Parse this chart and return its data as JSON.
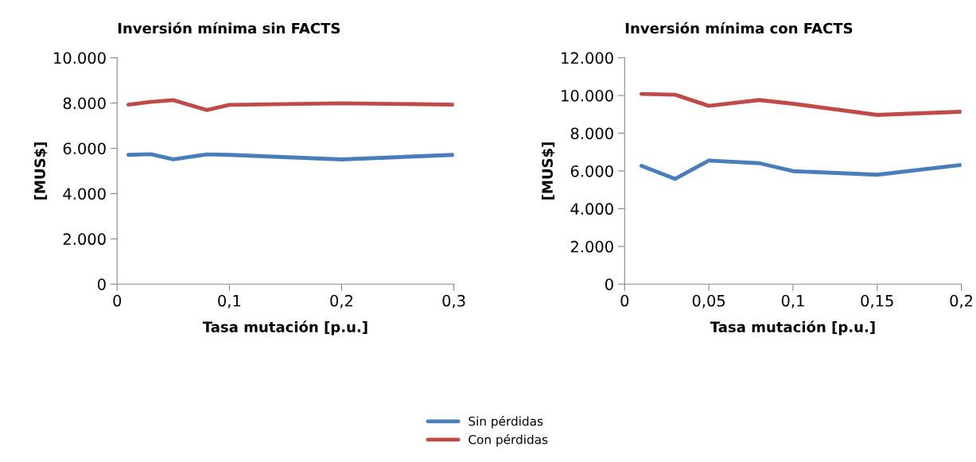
{
  "chart_data": [
    {
      "type": "line",
      "title": "Inversión mínima sin FACTS",
      "xlabel": "Tasa mutación [p.u.]",
      "ylabel": "[MUS$]",
      "x": [
        0.01,
        0.03,
        0.05,
        0.08,
        0.1,
        0.2,
        0.3
      ],
      "series": [
        {
          "name": "Sin pérdidas",
          "color": "#4a7ebb",
          "values": [
            5710,
            5740,
            5510,
            5730,
            5710,
            5510,
            5710
          ]
        },
        {
          "name": "Con pérdidas",
          "color": "#be4b48",
          "values": [
            7930,
            8050,
            8130,
            7690,
            7920,
            7990,
            7930
          ]
        }
      ],
      "xlim": [
        0,
        0.3
      ],
      "xticks": [
        {
          "value": 0,
          "label": "0"
        },
        {
          "value": 0.1,
          "label": "0,1"
        },
        {
          "value": 0.2,
          "label": "0,2"
        },
        {
          "value": 0.3,
          "label": "0,3"
        }
      ],
      "ylim": [
        0,
        10000
      ],
      "yticks": [
        0,
        {
          "value": 2000,
          "label": "2.000"
        },
        {
          "value": 4000,
          "label": "4.000"
        },
        {
          "value": 6000,
          "label": "6.000"
        },
        {
          "value": 8000,
          "label": "8.000"
        },
        {
          "value": 10000,
          "label": "10.000"
        }
      ],
      "grid": false,
      "marker": "none",
      "legend": "bottom"
    },
    {
      "type": "line",
      "title": "Inversión mínima con FACTS",
      "xlabel": "Tasa mutación [p.u.]",
      "ylabel": "[MUS$]",
      "x": [
        0.01,
        0.03,
        0.05,
        0.08,
        0.1,
        0.15,
        0.2
      ],
      "series": [
        {
          "name": "Sin pérdidas",
          "color": "#4a7ebb",
          "values": [
            6270,
            5580,
            6550,
            6410,
            5990,
            5800,
            6320
          ]
        },
        {
          "name": "Con pérdidas",
          "color": "#be4b48",
          "values": [
            10080,
            10040,
            9450,
            9760,
            9560,
            8970,
            9140
          ]
        }
      ],
      "xlim": [
        0,
        0.2
      ],
      "xticks": [
        {
          "value": 0,
          "label": "0"
        },
        {
          "value": 0.05,
          "label": "0,05"
        },
        {
          "value": 0.1,
          "label": "0,1"
        },
        {
          "value": 0.15,
          "label": "0,15"
        },
        {
          "value": 0.2,
          "label": "0,2"
        }
      ],
      "ylim": [
        0,
        12000
      ],
      "yticks": [
        0,
        {
          "value": 2000,
          "label": "2.000"
        },
        {
          "value": 4000,
          "label": "4.000"
        },
        {
          "value": 6000,
          "label": "6.000"
        },
        {
          "value": 8000,
          "label": "8.000"
        },
        {
          "value": 10000,
          "label": "10.000"
        },
        {
          "value": 12000,
          "label": "12.000"
        }
      ],
      "grid": false,
      "marker": "none",
      "legend": "bottom"
    }
  ]
}
